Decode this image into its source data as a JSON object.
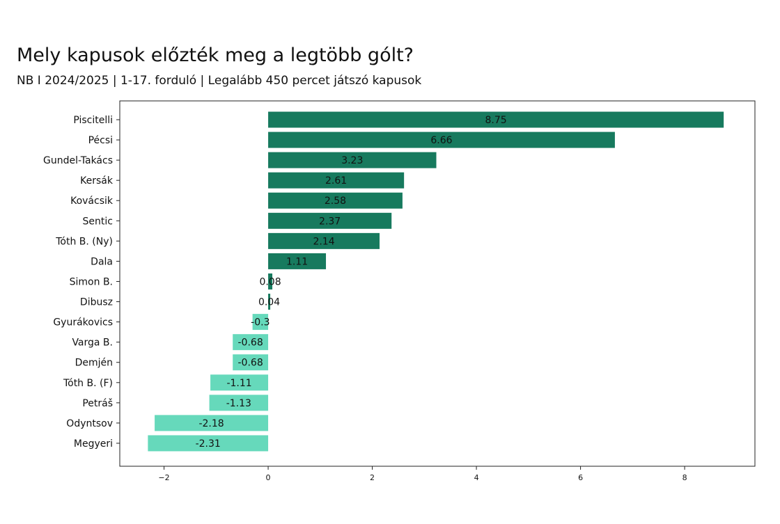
{
  "header": {
    "title": "Mely kapusok előzték meg a legtöbb gólt?",
    "subtitle": "NB I 2024/2025  |  1-17. forduló  |  Legalább 450 percet játszó kapusok"
  },
  "colors": {
    "positive": "#177a5e",
    "negative": "#66d9bb"
  },
  "chart_data": {
    "type": "bar",
    "orientation": "horizontal",
    "categories": [
      "Piscitelli",
      "Pécsi",
      "Gundel-Takács",
      "Kersák",
      "Kovácsik",
      "Sentic",
      "Tóth B. (Ny)",
      "Dala",
      "Simon B.",
      "Dibusz",
      "Gyurákovics",
      "Varga B.",
      "Demjén",
      "Tóth B. (F)",
      "Petráš",
      "Odyntsov",
      "Megyeri"
    ],
    "values": [
      8.75,
      6.66,
      3.23,
      2.61,
      2.58,
      2.37,
      2.14,
      1.11,
      0.08,
      0.04,
      -0.3,
      -0.68,
      -0.68,
      -1.11,
      -1.13,
      -2.18,
      -2.31
    ],
    "value_labels": [
      "8.75",
      "6.66",
      "3.23",
      "2.61",
      "2.58",
      "2.37",
      "2.14",
      "1.11",
      "0.08",
      "0.04",
      "-0.3",
      "-0.68",
      "-0.68",
      "-1.11",
      "-1.13",
      "-2.18",
      "-2.31"
    ],
    "xlim": [
      -2.85,
      9.35
    ],
    "xticks": [
      -2,
      0,
      2,
      4,
      6,
      8
    ],
    "xtick_labels": [
      "−2",
      "0",
      "2",
      "4",
      "6",
      "8"
    ],
    "grid": false,
    "legend": "none"
  }
}
